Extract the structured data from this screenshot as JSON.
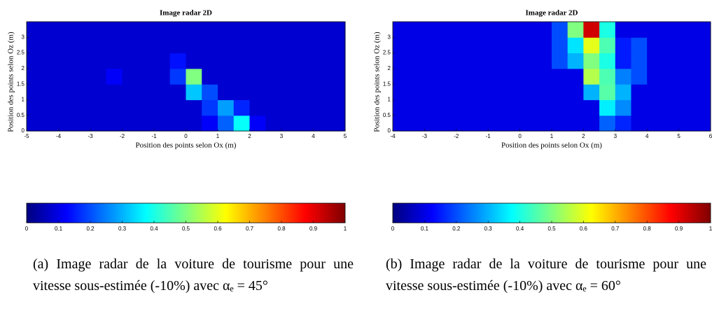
{
  "chart_data": [
    {
      "type": "heatmap",
      "title": "Image radar 2D",
      "x_label": "Position des points selon Ox (m)",
      "y_label": "Position des points selon Oz (m)",
      "xlim": [
        -5,
        5
      ],
      "xticks": [
        -5,
        -4,
        -3,
        -2,
        -1,
        0,
        1,
        2,
        3,
        4,
        5
      ],
      "ylim": [
        0,
        3.5
      ],
      "yticks": [
        0,
        0.5,
        1,
        1.5,
        2,
        2.5,
        3
      ],
      "colormap": "jet",
      "z": [
        [
          0.08,
          0.08,
          0.08,
          0.08,
          0.08,
          0.08,
          0.08,
          0.08,
          0.08,
          0.08,
          0.08,
          0.12,
          0.22,
          0.38,
          0.12,
          0.08,
          0.08,
          0.08,
          0.08,
          0.08
        ],
        [
          0.08,
          0.08,
          0.08,
          0.08,
          0.08,
          0.08,
          0.08,
          0.08,
          0.08,
          0.08,
          0.08,
          0.18,
          0.28,
          0.16,
          0.08,
          0.08,
          0.08,
          0.08,
          0.08,
          0.08
        ],
        [
          0.08,
          0.08,
          0.08,
          0.08,
          0.08,
          0.08,
          0.08,
          0.08,
          0.08,
          0.08,
          0.32,
          0.2,
          0.08,
          0.08,
          0.08,
          0.08,
          0.08,
          0.08,
          0.08,
          0.08
        ],
        [
          0.08,
          0.08,
          0.08,
          0.08,
          0.08,
          0.12,
          0.08,
          0.08,
          0.08,
          0.18,
          0.5,
          0.08,
          0.08,
          0.08,
          0.08,
          0.08,
          0.08,
          0.08,
          0.08,
          0.08
        ],
        [
          0.08,
          0.08,
          0.08,
          0.08,
          0.08,
          0.08,
          0.08,
          0.08,
          0.08,
          0.14,
          0.08,
          0.08,
          0.08,
          0.08,
          0.08,
          0.08,
          0.08,
          0.08,
          0.08,
          0.08
        ],
        [
          0.08,
          0.08,
          0.08,
          0.08,
          0.08,
          0.08,
          0.08,
          0.08,
          0.08,
          0.08,
          0.08,
          0.08,
          0.08,
          0.08,
          0.08,
          0.08,
          0.08,
          0.08,
          0.08,
          0.08
        ],
        [
          0.08,
          0.08,
          0.08,
          0.08,
          0.08,
          0.08,
          0.08,
          0.08,
          0.08,
          0.08,
          0.08,
          0.08,
          0.08,
          0.08,
          0.08,
          0.08,
          0.08,
          0.08,
          0.08,
          0.08
        ]
      ],
      "colorbar": {
        "lim": [
          0,
          1
        ],
        "ticks": [
          0,
          0.1,
          0.2,
          0.3,
          0.4,
          0.5,
          0.6,
          0.7,
          0.8,
          0.9,
          1
        ]
      },
      "caption": "(a) Image radar de la voiture de tourisme pour une vitesse sous-estimée (-10%) avec αₑ = 45°"
    },
    {
      "type": "heatmap",
      "title": "Image radar 2D",
      "x_label": "Position des points selon Ox (m)",
      "y_label": "Position des points selon Oz (m)",
      "xlim": [
        -4,
        6
      ],
      "xticks": [
        -4,
        -3,
        -2,
        -1,
        0,
        1,
        2,
        3,
        4,
        5,
        6
      ],
      "ylim": [
        0,
        3.5
      ],
      "yticks": [
        0,
        0.5,
        1,
        1.5,
        2,
        2.5,
        3
      ],
      "colormap": "jet",
      "z": [
        [
          0.1,
          0.1,
          0.1,
          0.1,
          0.1,
          0.1,
          0.1,
          0.1,
          0.1,
          0.1,
          0.1,
          0.1,
          0.1,
          0.22,
          0.16,
          0.1,
          0.1,
          0.1,
          0.1,
          0.1
        ],
        [
          0.1,
          0.1,
          0.1,
          0.1,
          0.1,
          0.1,
          0.1,
          0.1,
          0.1,
          0.1,
          0.1,
          0.1,
          0.1,
          0.36,
          0.26,
          0.1,
          0.1,
          0.1,
          0.1,
          0.1
        ],
        [
          0.1,
          0.1,
          0.1,
          0.1,
          0.1,
          0.1,
          0.1,
          0.1,
          0.1,
          0.1,
          0.1,
          0.1,
          0.3,
          0.46,
          0.3,
          0.1,
          0.1,
          0.1,
          0.1,
          0.1
        ],
        [
          0.1,
          0.1,
          0.1,
          0.1,
          0.1,
          0.1,
          0.1,
          0.1,
          0.1,
          0.1,
          0.1,
          0.1,
          0.55,
          0.45,
          0.25,
          0.2,
          0.1,
          0.1,
          0.1,
          0.1
        ],
        [
          0.1,
          0.1,
          0.1,
          0.1,
          0.1,
          0.1,
          0.1,
          0.1,
          0.1,
          0.1,
          0.2,
          0.3,
          0.5,
          0.4,
          0.15,
          0.2,
          0.1,
          0.1,
          0.1,
          0.1
        ],
        [
          0.1,
          0.1,
          0.1,
          0.1,
          0.1,
          0.1,
          0.1,
          0.1,
          0.1,
          0.1,
          0.2,
          0.35,
          0.6,
          0.45,
          0.15,
          0.2,
          0.1,
          0.1,
          0.1,
          0.1
        ],
        [
          0.1,
          0.1,
          0.1,
          0.1,
          0.1,
          0.1,
          0.1,
          0.1,
          0.1,
          0.1,
          0.2,
          0.5,
          0.92,
          0.4,
          0.1,
          0.1,
          0.1,
          0.1,
          0.1,
          0.1
        ]
      ],
      "colorbar": {
        "lim": [
          0,
          1
        ],
        "ticks": [
          0,
          0.1,
          0.2,
          0.3,
          0.4,
          0.5,
          0.6,
          0.7,
          0.8,
          0.9,
          1
        ]
      },
      "caption": "(b) Image radar de la voiture de tourisme pour une vitesse sous-estimée (-10%) avec αₑ = 60°"
    }
  ]
}
